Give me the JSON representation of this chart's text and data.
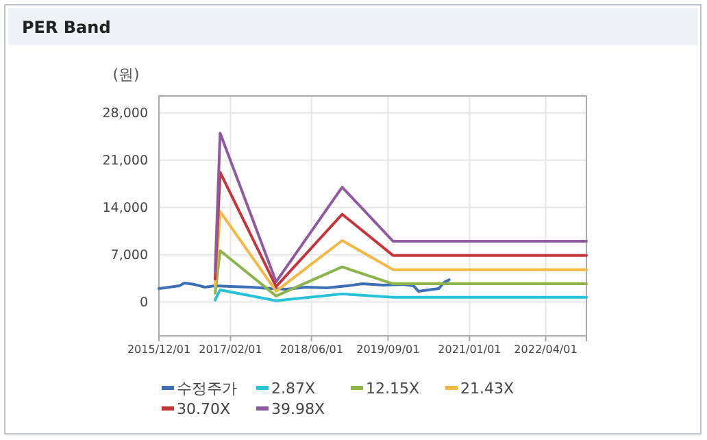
{
  "chart_data": {
    "type": "line",
    "title": "PER Band",
    "ylabel": "(원)",
    "xlim": [
      "2015-12-01",
      "2022-12-01"
    ],
    "xticks": [
      {
        "value": "2015-12-01",
        "label": "2015/12/01"
      },
      {
        "value": "2017-02-01",
        "label": "2017/02/01"
      },
      {
        "value": "2018-06-01",
        "label": "2018/06/01"
      },
      {
        "value": "2019-09-01",
        "label": "2019/09/01"
      },
      {
        "value": "2021-01-01",
        "label": "2021/01/01"
      },
      {
        "value": "2022-04-01",
        "label": "2022/04/01"
      }
    ],
    "ylim": [
      -5000,
      30500
    ],
    "yticks": [
      {
        "value": 0,
        "label": "0"
      },
      {
        "value": 7000,
        "label": "7,000"
      },
      {
        "value": 14000,
        "label": "14,000"
      },
      {
        "value": 21000,
        "label": "21,000"
      },
      {
        "value": 28000,
        "label": "28,000"
      }
    ],
    "grid": true,
    "legend": "bottom",
    "marker": "none",
    "line_style": "solid",
    "series": [
      {
        "name": "수정주가",
        "color": "#3d6fb6",
        "x": [
          "2015-12-01",
          "2016-02-01",
          "2016-04-01",
          "2016-05-01",
          "2016-07-01",
          "2016-09-01",
          "2016-11-01",
          "2017-02-01",
          "2017-06-01",
          "2017-10-01",
          "2018-01-01",
          "2018-05-01",
          "2018-09-01",
          "2019-01-01",
          "2019-04-01",
          "2019-08-01",
          "2019-12-01",
          "2020-02-01",
          "2020-03-01",
          "2020-05-01",
          "2020-07-01",
          "2020-08-01",
          "2020-09-01"
        ],
        "values": [
          2000,
          2200,
          2400,
          2800,
          2600,
          2200,
          2400,
          2300,
          2200,
          2000,
          1900,
          2200,
          2100,
          2400,
          2700,
          2500,
          2600,
          2400,
          1600,
          1800,
          2000,
          2900,
          3300
        ]
      },
      {
        "name": "2.87X",
        "color": "#27c2d8",
        "x": [
          "2016-11-01",
          "2016-12-01",
          "2017-11-01",
          "2018-12-01",
          "2019-10-01",
          "2022-12-01"
        ],
        "values": [
          300,
          1800,
          200,
          1200,
          700,
          700
        ]
      },
      {
        "name": "12.15X",
        "color": "#8db44c",
        "x": [
          "2016-11-01",
          "2016-12-01",
          "2017-11-01",
          "2018-12-01",
          "2019-10-01",
          "2022-12-01"
        ],
        "values": [
          1300,
          7600,
          900,
          5200,
          2700,
          2700
        ]
      },
      {
        "name": "21.43X",
        "color": "#f4b844",
        "x": [
          "2016-11-01",
          "2016-12-01",
          "2017-11-01",
          "2018-12-01",
          "2019-10-01",
          "2022-12-01"
        ],
        "values": [
          2400,
          13400,
          1600,
          9100,
          4800,
          4800
        ]
      },
      {
        "name": "30.70X",
        "color": "#c5353b",
        "x": [
          "2016-11-01",
          "2016-12-01",
          "2017-11-01",
          "2018-12-01",
          "2019-10-01",
          "2022-12-01"
        ],
        "values": [
          3400,
          19200,
          2300,
          13000,
          6900,
          6900
        ]
      },
      {
        "name": "39.98X",
        "color": "#8f5aa0",
        "x": [
          "2016-11-01",
          "2016-12-01",
          "2017-11-01",
          "2018-12-01",
          "2019-10-01",
          "2022-12-01"
        ],
        "values": [
          4400,
          25000,
          3000,
          17000,
          9000,
          9000
        ]
      }
    ]
  }
}
